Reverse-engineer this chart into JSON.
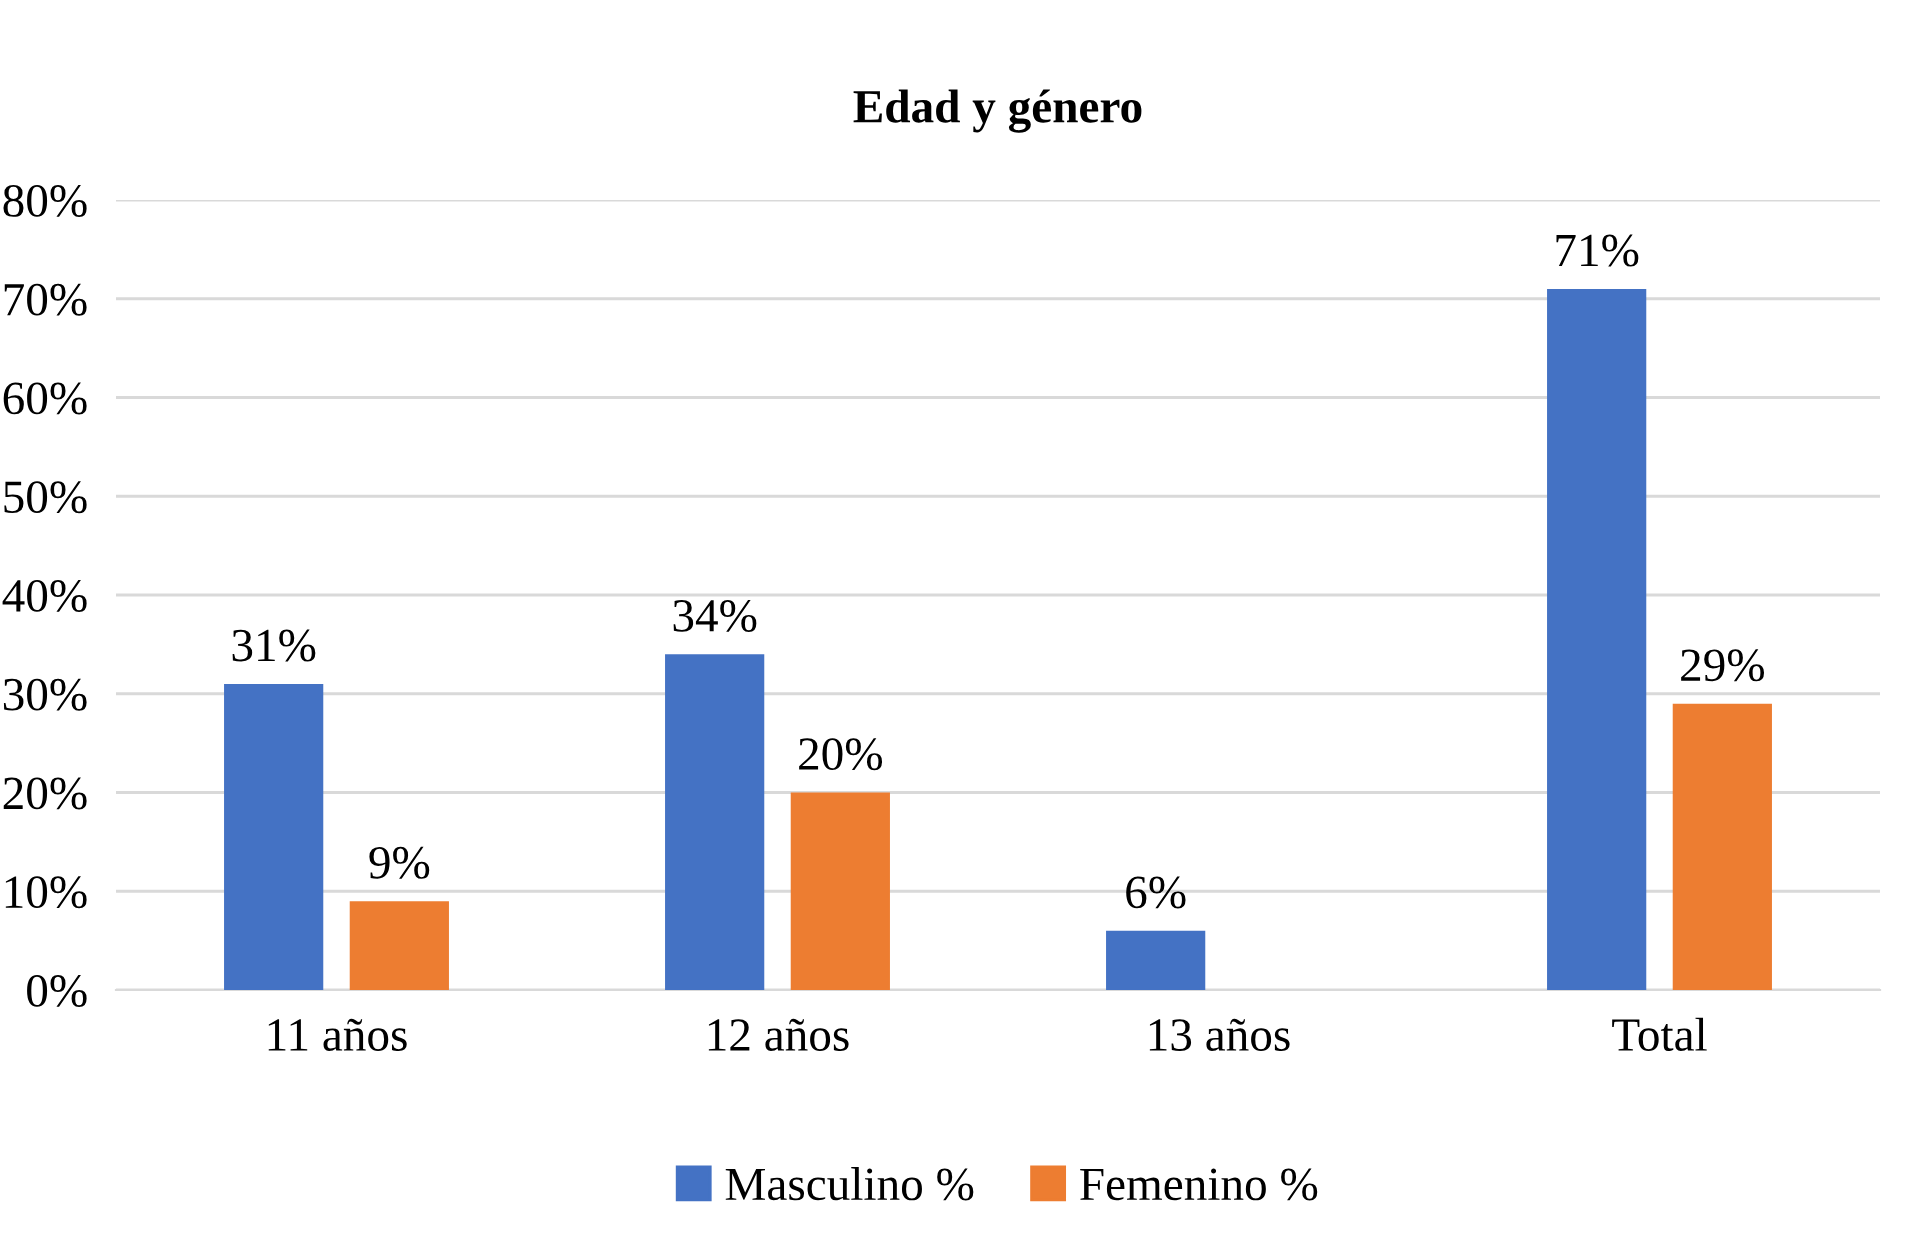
{
  "chart_data": {
    "type": "bar",
    "title": "Edad y género",
    "categories": [
      "11 años",
      "12 años",
      "13 años",
      "Total"
    ],
    "series": [
      {
        "name": "Masculino %",
        "color": "#4472c4",
        "values": [
          31,
          34,
          6,
          71
        ],
        "value_labels": [
          "31%",
          "34%",
          "6%",
          "71%"
        ]
      },
      {
        "name": "Femenino %",
        "color": "#ed7d31",
        "values": [
          9,
          20,
          null,
          29
        ],
        "value_labels": [
          "9%",
          "20%",
          null,
          "29%"
        ]
      }
    ],
    "ylim": [
      0,
      80
    ],
    "yticks": [
      {
        "value": 0,
        "label": "0%"
      },
      {
        "value": 10,
        "label": "10%"
      },
      {
        "value": 20,
        "label": "20%"
      },
      {
        "value": 30,
        "label": "30%"
      },
      {
        "value": 40,
        "label": "40%"
      },
      {
        "value": 50,
        "label": "50%"
      },
      {
        "value": 60,
        "label": "60%"
      },
      {
        "value": 70,
        "label": "70%"
      },
      {
        "value": 80,
        "label": "80%"
      }
    ],
    "grid": "y",
    "legend": "bottom"
  }
}
